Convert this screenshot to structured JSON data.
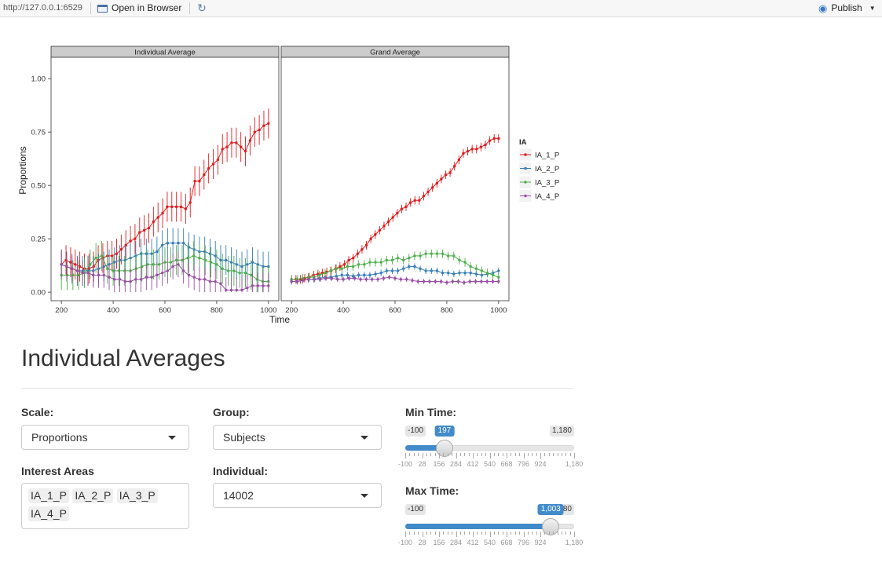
{
  "toolbar": {
    "url": "http://127.0.0.1:6529",
    "open_in_browser": "Open in Browser",
    "publish": "Publish",
    "refresh_icon": "refresh-icon",
    "publish_icon": "publish-icon"
  },
  "chart_data": {
    "type": "line",
    "ylabel": "Proportions",
    "xlabel": "Time",
    "panels": [
      "Individual Average",
      "Grand Average"
    ],
    "x_ticks": [
      200,
      400,
      600,
      800,
      1000
    ],
    "y_ticks": [
      "0.00",
      "0.25",
      "0.50",
      "0.75",
      "1.00"
    ],
    "xlim": [
      160,
      1040
    ],
    "ylim": [
      -0.04,
      1.1
    ],
    "legend": {
      "title": "IA",
      "position": "right"
    },
    "x": [
      200,
      220,
      240,
      260,
      280,
      300,
      320,
      340,
      360,
      380,
      400,
      420,
      440,
      460,
      480,
      500,
      520,
      540,
      560,
      580,
      600,
      620,
      640,
      660,
      680,
      700,
      720,
      740,
      760,
      780,
      800,
      820,
      840,
      860,
      880,
      900,
      920,
      940,
      960,
      980,
      1000
    ],
    "series": [
      {
        "name": "IA_1_P",
        "color": "#e41a1c",
        "individual": [
          0.13,
          0.15,
          0.14,
          0.13,
          0.12,
          0.11,
          0.11,
          0.12,
          0.15,
          0.16,
          0.17,
          0.17,
          0.18,
          0.2,
          0.22,
          0.24,
          0.25,
          0.28,
          0.29,
          0.3,
          0.33,
          0.35,
          0.37,
          0.4,
          0.4,
          0.4,
          0.4,
          0.39,
          0.42,
          0.52,
          0.52,
          0.55,
          0.58,
          0.6,
          0.62,
          0.67,
          0.68,
          0.7,
          0.7,
          0.68,
          0.66,
          0.71,
          0.75,
          0.76,
          0.78,
          0.79
        ],
        "individual_err": 0.07,
        "grand": [
          0.06,
          0.06,
          0.06,
          0.065,
          0.07,
          0.08,
          0.085,
          0.09,
          0.095,
          0.1,
          0.11,
          0.12,
          0.13,
          0.15,
          0.16,
          0.18,
          0.2,
          0.22,
          0.25,
          0.27,
          0.29,
          0.31,
          0.33,
          0.35,
          0.37,
          0.39,
          0.4,
          0.42,
          0.43,
          0.43,
          0.45,
          0.47,
          0.49,
          0.51,
          0.53,
          0.55,
          0.56,
          0.59,
          0.62,
          0.65,
          0.66,
          0.67,
          0.67,
          0.68,
          0.69,
          0.71,
          0.72,
          0.72
        ],
        "grand_err": 0.02
      },
      {
        "name": "IA_2_P",
        "color": "#377eb8",
        "individual": [
          0.13,
          0.12,
          0.11,
          0.1,
          0.1,
          0.1,
          0.1,
          0.11,
          0.12,
          0.13,
          0.14,
          0.15,
          0.15,
          0.16,
          0.17,
          0.18,
          0.18,
          0.18,
          0.19,
          0.22,
          0.23,
          0.23,
          0.23,
          0.23,
          0.21,
          0.2,
          0.19,
          0.19,
          0.18,
          0.17,
          0.15,
          0.15,
          0.14,
          0.13,
          0.12,
          0.13,
          0.14,
          0.13,
          0.12,
          0.12
        ],
        "individual_err": 0.07,
        "grand": [
          0.05,
          0.05,
          0.055,
          0.06,
          0.06,
          0.065,
          0.07,
          0.07,
          0.075,
          0.08,
          0.08,
          0.075,
          0.08,
          0.08,
          0.08,
          0.085,
          0.09,
          0.1,
          0.1,
          0.1,
          0.11,
          0.12,
          0.12,
          0.11,
          0.1,
          0.1,
          0.1,
          0.09,
          0.09,
          0.085,
          0.09,
          0.09,
          0.09,
          0.085,
          0.08,
          0.085,
          0.09,
          0.1
        ],
        "grand_err": 0.015
      },
      {
        "name": "IA_3_P",
        "color": "#4daf4a",
        "individual": [
          0.08,
          0.08,
          0.08,
          0.08,
          0.09,
          0.13,
          0.16,
          0.17,
          0.11,
          0.1,
          0.1,
          0.1,
          0.1,
          0.11,
          0.12,
          0.13,
          0.13,
          0.13,
          0.14,
          0.14,
          0.15,
          0.15,
          0.16,
          0.17,
          0.16,
          0.15,
          0.14,
          0.13,
          0.11,
          0.1,
          0.1,
          0.09,
          0.09,
          0.08,
          0.06,
          0.05,
          0.05
        ],
        "individual_err": 0.07,
        "grand": [
          0.06,
          0.06,
          0.065,
          0.07,
          0.07,
          0.08,
          0.09,
          0.1,
          0.11,
          0.11,
          0.12,
          0.12,
          0.13,
          0.13,
          0.14,
          0.14,
          0.14,
          0.15,
          0.15,
          0.16,
          0.15,
          0.16,
          0.17,
          0.17,
          0.18,
          0.18,
          0.18,
          0.18,
          0.17,
          0.17,
          0.15,
          0.14,
          0.12,
          0.11,
          0.1,
          0.09,
          0.08,
          0.07
        ],
        "grand_err": 0.02
      },
      {
        "name": "IA_4_P",
        "color": "#984ea3",
        "individual": [
          0.13,
          0.12,
          0.11,
          0.1,
          0.09,
          0.09,
          0.08,
          0.08,
          0.08,
          0.07,
          0.06,
          0.06,
          0.05,
          0.05,
          0.06,
          0.06,
          0.07,
          0.07,
          0.08,
          0.09,
          0.1,
          0.12,
          0.13,
          0.1,
          0.08,
          0.07,
          0.06,
          0.06,
          0.05,
          0.05,
          0.04,
          0.01,
          0.01,
          0.01,
          0.01,
          0.02,
          0.03,
          0.03,
          0.03,
          0.03
        ],
        "individual_err": 0.06,
        "grand": [
          0.05,
          0.05,
          0.055,
          0.06,
          0.06,
          0.06,
          0.065,
          0.065,
          0.06,
          0.06,
          0.065,
          0.065,
          0.06,
          0.06,
          0.06,
          0.06,
          0.065,
          0.07,
          0.065,
          0.06,
          0.06,
          0.055,
          0.05,
          0.05,
          0.05,
          0.05,
          0.05,
          0.045,
          0.05,
          0.05,
          0.045,
          0.05,
          0.05,
          0.05,
          0.05,
          0.05,
          0.05
        ],
        "grand_err": 0.012
      }
    ]
  },
  "page": {
    "title": "Individual Averages"
  },
  "controls": {
    "scale": {
      "label": "Scale:",
      "value": "Proportions"
    },
    "group": {
      "label": "Group:",
      "value": "Subjects"
    },
    "interest_areas": {
      "label": "Interest Areas",
      "chips": [
        "IA_1_P",
        "IA_2_P",
        "IA_3_P",
        "IA_4_P"
      ]
    },
    "individual": {
      "label": "Individual:",
      "value": "14002"
    },
    "min_time": {
      "label": "Min Time:",
      "min": -100,
      "max": 1180,
      "value": 197,
      "min_text": "-100",
      "max_text": "1,180",
      "value_text": "197"
    },
    "max_time": {
      "label": "Max Time:",
      "min": -100,
      "max": 1180,
      "value": 1003,
      "min_text": "-100",
      "max_text": "1,180",
      "value_text": "1,003"
    },
    "slider_grid": [
      "-100",
      "28",
      "156",
      "284",
      "412",
      "540",
      "668",
      "796",
      "924",
      "1,180"
    ]
  }
}
